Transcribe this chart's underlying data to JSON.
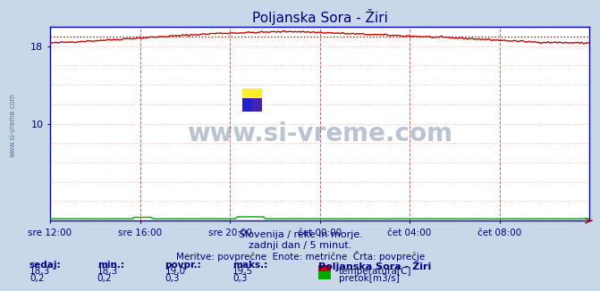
{
  "title": "Poljanska Sora - Žiri",
  "title_color": "#000080",
  "title_fontsize": 11,
  "bg_color": "#c8d8e8",
  "plot_bg_color": "#ffffff",
  "xlabel_color": "#000080",
  "text_color": "#000080",
  "figsize": [
    6.59,
    3.32
  ],
  "dpi": 100,
  "xlim": [
    0,
    288
  ],
  "ylim": [
    0,
    20
  ],
  "yticks_show": [
    10,
    18
  ],
  "xtick_labels": [
    "sre 12:00",
    "sre 16:00",
    "sre 20:00",
    "čet 00:00",
    "čet 04:00",
    "čet 08:00"
  ],
  "xtick_positions": [
    0,
    48,
    96,
    144,
    192,
    240
  ],
  "temp_avg": 19.0,
  "temp_color": "#cc0000",
  "flow_color": "#00aa00",
  "vgrid_color": "#dd6666",
  "hgrid_color": "#ffaaaa",
  "watermark_text": "www.si-vreme.com",
  "watermark_color": "#1a3a6b",
  "watermark_alpha": 0.3,
  "subtitle1": "Slovenija / reke in morje.",
  "subtitle2": "zadnji dan / 5 minut.",
  "subtitle3": "Meritve: povprečne  Enote: metrične  Črta: povprečje",
  "legend_title": "Poljanska Sora - Žiri",
  "label_sedaj": "sedaj:",
  "label_min": "min.:",
  "label_povpr": "povpr.:",
  "label_maks": "maks.:",
  "temp_sedaj": "18,3",
  "temp_min_str": "18,3",
  "temp_povpr_str": "19,0",
  "temp_maks_str": "19,5",
  "flow_sedaj": "0,2",
  "flow_min_str": "0,2",
  "flow_povpr_str": "0,3",
  "flow_maks_str": "0,3",
  "temp_label": "temperatura[C]",
  "flow_label": "pretok[m3/s]",
  "spine_color": "#0000cc",
  "left_margin_text": "www.si-vreme.com"
}
